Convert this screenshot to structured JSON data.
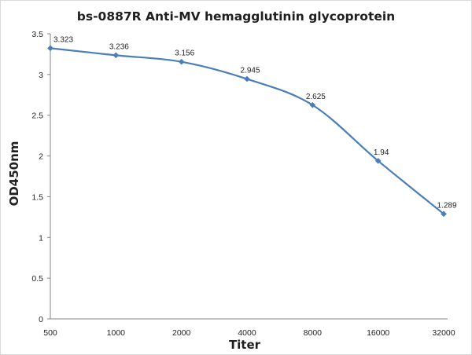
{
  "chart_data": {
    "type": "line",
    "title": "bs-0887R Anti-MV hemagglutinin glycoprotein",
    "xlabel": "Titer",
    "ylabel": "OD450nm",
    "categories": [
      "500",
      "1000",
      "2000",
      "4000",
      "8000",
      "16000",
      "32000"
    ],
    "series": [
      {
        "values": [
          3.323,
          3.236,
          3.156,
          2.945,
          2.625,
          1.94,
          1.289
        ],
        "labels": [
          "3.323",
          "3.236",
          "3.156",
          "2.945",
          "2.625",
          "1.94",
          "1.289"
        ]
      }
    ],
    "ylim": [
      0,
      3.5
    ],
    "yticks": [
      "0",
      "0.5",
      "1",
      "1.5",
      "2",
      "2.5",
      "3",
      "3.5"
    ],
    "grid": false,
    "legend": "none",
    "series_color": "#4a7ebb"
  }
}
